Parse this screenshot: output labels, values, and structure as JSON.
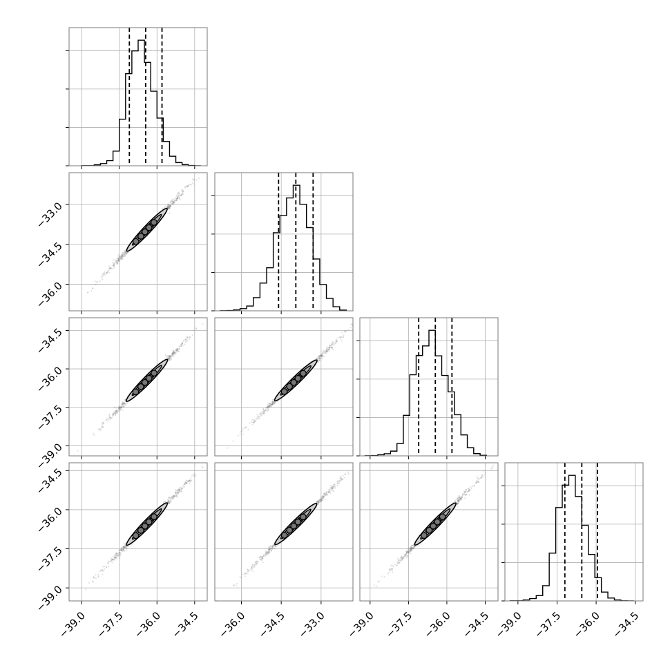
{
  "chart_data": {
    "type": "corner",
    "n_params": 4,
    "colors": {
      "line": "#000000",
      "grid": "#b0b0b0",
      "frame": "#777777",
      "fill": "#d0d0d0",
      "points": "#606060"
    },
    "grid": true,
    "ranges": [
      [
        -39.5,
        -34.0
      ],
      [
        -37.0,
        -31.8
      ],
      [
        -39.4,
        -34.0
      ],
      [
        -39.5,
        -34.2
      ]
    ],
    "x_ticks": [
      {
        "values": [
          -39.0,
          -37.5,
          -36.0,
          -34.5
        ],
        "labels": [
          "−39.0",
          "−37.5",
          "−36.0",
          "−34.5"
        ]
      },
      {
        "values": [
          -36.0,
          -34.5,
          -33.0
        ],
        "labels": [
          "−36.0",
          "−34.5",
          "−33.0"
        ]
      },
      {
        "values": [
          -39.0,
          -37.5,
          -36.0,
          -34.5
        ],
        "labels": [
          "−39.0",
          "−37.5",
          "−36.0",
          "−34.5"
        ]
      },
      {
        "values": [
          -39.0,
          -37.5,
          -36.0,
          -34.5
        ],
        "labels": [
          "−39.0",
          "−37.5",
          "−36.0",
          "−34.5"
        ]
      }
    ],
    "y_ticks": [
      null,
      {
        "values": [
          -33.0,
          -34.5,
          -36.0
        ],
        "labels": [
          "−33.0",
          "−34.5",
          "−36.0"
        ]
      },
      {
        "values": [
          -34.5,
          -36.0,
          -37.5,
          -39.0
        ],
        "labels": [
          "−34.5",
          "−36.0",
          "−37.5",
          "−39.0"
        ]
      },
      {
        "values": [
          -34.5,
          -36.0,
          -37.5,
          -39.0
        ],
        "labels": [
          "−34.5",
          "−36.0",
          "−37.5",
          "−39.0"
        ]
      }
    ],
    "histograms": [
      {
        "edges": [
          -39.0,
          -38.75,
          -38.5,
          -38.25,
          -38.0,
          -37.75,
          -37.5,
          -37.25,
          -37.0,
          -36.75,
          -36.5,
          -36.25,
          -36.0,
          -35.75,
          -35.5,
          -35.25,
          -35.0,
          -34.75,
          -34.5,
          -34.25
        ],
        "counts": [
          1,
          1,
          6,
          14,
          32,
          92,
          292,
          577,
          720,
          787,
          648,
          467,
          299,
          152,
          60,
          20,
          7,
          2,
          0
        ],
        "quantiles": [
          -37.1,
          -36.45,
          -35.8
        ]
      },
      {
        "edges": [
          -36.8,
          -36.55,
          -36.3,
          -36.05,
          -35.8,
          -35.55,
          -35.3,
          -35.05,
          -34.8,
          -34.55,
          -34.3,
          -34.05,
          -33.8,
          -33.55,
          -33.3,
          -33.05,
          -32.8,
          -32.55,
          -32.3,
          -32.05
        ],
        "counts": [
          1,
          2,
          6,
          15,
          33,
          90,
          190,
          295,
          535,
          652,
          773,
          860,
          730,
          570,
          355,
          180,
          85,
          28,
          5
        ],
        "quantiles": [
          -34.6,
          -33.95,
          -33.3
        ]
      },
      {
        "edges": [
          -39.2,
          -38.95,
          -38.7,
          -38.45,
          -38.2,
          -37.95,
          -37.7,
          -37.45,
          -37.2,
          -36.95,
          -36.7,
          -36.45,
          -36.2,
          -35.95,
          -35.7,
          -35.45,
          -35.2,
          -34.95,
          -34.7,
          -34.45
        ],
        "counts": [
          1,
          2,
          8,
          15,
          34,
          88,
          290,
          580,
          718,
          786,
          898,
          715,
          575,
          458,
          294,
          150,
          58,
          16,
          4
        ],
        "quantiles": [
          -37.1,
          -36.45,
          -35.8
        ]
      },
      {
        "edges": [
          -39.3,
          -39.05,
          -38.8,
          -38.55,
          -38.3,
          -38.05,
          -37.8,
          -37.55,
          -37.3,
          -37.05,
          -36.8,
          -36.55,
          -36.3,
          -36.05,
          -35.8,
          -35.55,
          -35.3,
          -35.05,
          -34.8,
          -34.55
        ],
        "counts": [
          1,
          1,
          6,
          15,
          33,
          95,
          298,
          582,
          722,
          783,
          651,
          472,
          290,
          145,
          55,
          18,
          6,
          1,
          0
        ],
        "quantiles": [
          -37.2,
          -36.55,
          -35.95
        ]
      }
    ],
    "pairs": [
      {
        "row": 1,
        "col": 0,
        "x_mean": -36.4,
        "y_mean": -33.95,
        "sx": 0.62,
        "sy": 0.62,
        "rho": 0.985,
        "x_extent": [
          -39.2,
          -34.0
        ]
      },
      {
        "row": 2,
        "col": 0,
        "x_mean": -36.4,
        "y_mean": -36.45,
        "sx": 0.62,
        "sy": 0.62,
        "rho": 0.985,
        "x_extent": [
          -39.2,
          -34.0
        ]
      },
      {
        "row": 2,
        "col": 1,
        "x_mean": -33.95,
        "y_mean": -36.45,
        "sx": 0.62,
        "sy": 0.62,
        "rho": 0.985,
        "x_extent": [
          -36.7,
          -31.9
        ]
      },
      {
        "row": 3,
        "col": 0,
        "x_mean": -36.4,
        "y_mean": -36.55,
        "sx": 0.62,
        "sy": 0.62,
        "rho": 0.985,
        "x_extent": [
          -39.2,
          -34.0
        ]
      },
      {
        "row": 3,
        "col": 1,
        "x_mean": -33.95,
        "y_mean": -36.55,
        "sx": 0.62,
        "sy": 0.62,
        "rho": 0.985,
        "x_extent": [
          -36.7,
          -31.9
        ]
      },
      {
        "row": 3,
        "col": 2,
        "x_mean": -36.45,
        "y_mean": -36.55,
        "sx": 0.62,
        "sy": 0.62,
        "rho": 0.985,
        "x_extent": [
          -39.2,
          -34.0
        ]
      }
    ]
  }
}
